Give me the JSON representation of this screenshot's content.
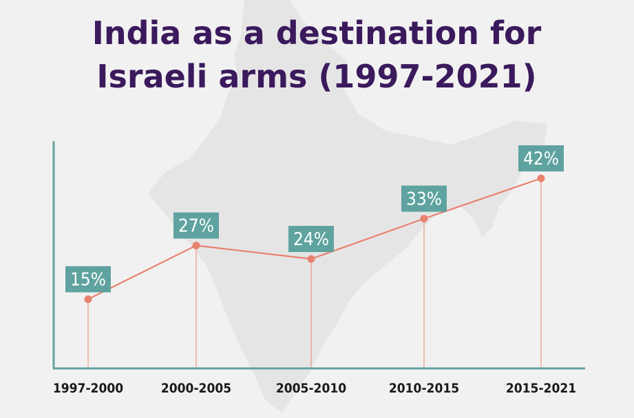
{
  "chart_data": {
    "type": "line",
    "title_lines": [
      "India as a destination for",
      "Israeli arms (1997-2021)"
    ],
    "categories": [
      "1997-2000",
      "2000-2005",
      "2005-2010",
      "2010-2015",
      "2015-2021"
    ],
    "values": [
      15,
      27,
      24,
      33,
      42
    ],
    "value_labels": [
      "15%",
      "27%",
      "24%",
      "33%",
      "42%"
    ],
    "xlabel": "",
    "ylabel": "",
    "ylim": [
      0,
      50
    ],
    "grid": false,
    "colors": {
      "title": "#3a1a5c",
      "line": "#e8826f",
      "label_box": "#5fa3a0",
      "axis": "#5fa3a0",
      "map_silhouette": "#e6e5e5",
      "background": "#f2f1f1"
    }
  }
}
